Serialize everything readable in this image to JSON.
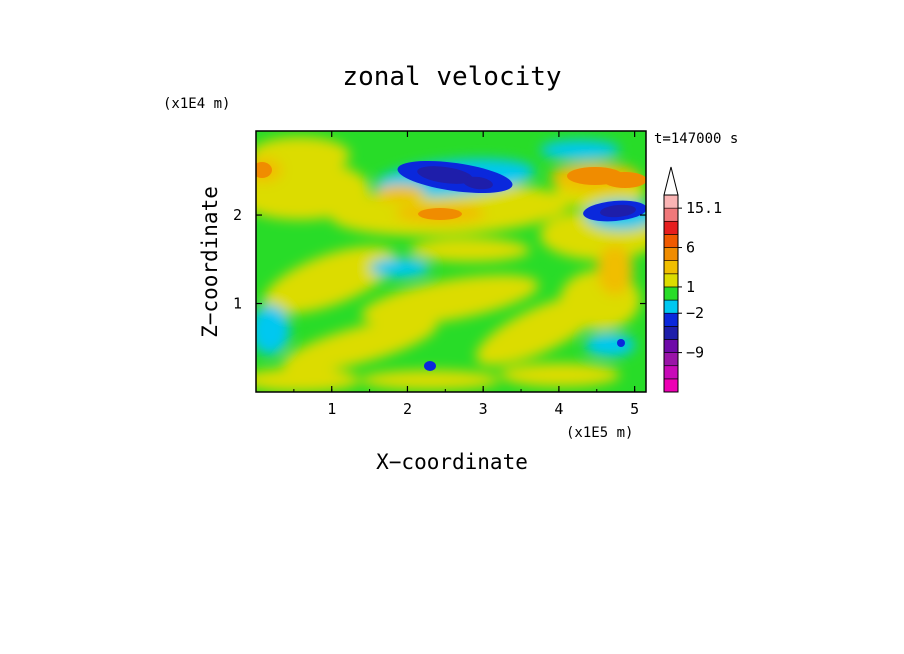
{
  "chart_data": {
    "type": "heatmap",
    "title": "zonal velocity",
    "xlabel": "X−coordinate",
    "ylabel": "Z−coordinate",
    "x_unit": "(x1E5 m)",
    "y_unit": "(x1E4 m)",
    "time_label": "t=147000 s",
    "xlim": [
      0,
      5.15
    ],
    "ylim": [
      0,
      2.95
    ],
    "x_ticks": [
      1,
      2,
      3,
      4,
      5
    ],
    "y_ticks": [
      1,
      2
    ],
    "colorbar": {
      "colors": [
        "#ee00b4",
        "#c80ab8",
        "#9a14a8",
        "#6e0aa8",
        "#1e1eaa",
        "#0a28dc",
        "#00c8f0",
        "#28dc28",
        "#dcdc00",
        "#f0be00",
        "#f08c00",
        "#f05a00",
        "#e61e1e",
        "#f0787a",
        "#fab4b4"
      ],
      "labels": [
        "−9",
        "−2",
        "1",
        "6",
        "15.1"
      ],
      "label_levels": [
        3,
        6,
        8,
        11,
        14
      ],
      "extend_max": true
    },
    "features": [
      {
        "x": 2.6,
        "z": 2.45,
        "value": -8,
        "desc": "strong negative core"
      },
      {
        "x": 4.75,
        "z": 2.08,
        "value": -8
      },
      {
        "x": 4.3,
        "z": 2.45,
        "value": 6
      },
      {
        "x": 0.1,
        "z": 2.5,
        "value": 5
      },
      {
        "x": 1.9,
        "z": 2.05,
        "value": 3
      }
    ]
  }
}
